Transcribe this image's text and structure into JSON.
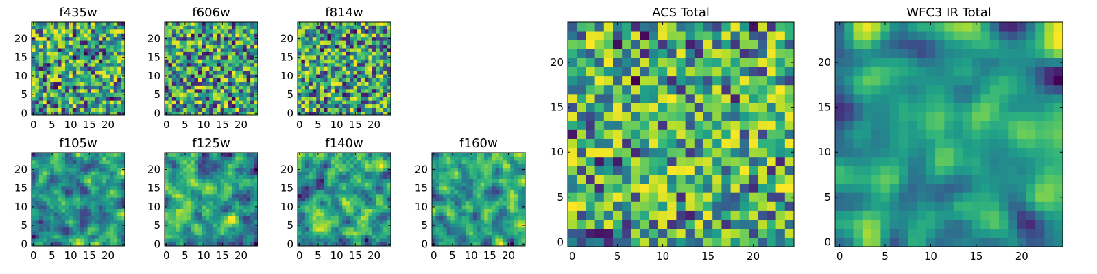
{
  "chart_data": [
    {
      "type": "heatmap",
      "title": "f435w",
      "grid_size": 25,
      "xlim": [
        0,
        24
      ],
      "ylim": [
        0,
        24
      ],
      "x_ticks": [
        0,
        5,
        10,
        15,
        20
      ],
      "y_ticks": [
        0,
        5,
        10,
        15,
        20
      ],
      "colormap": "viridis",
      "texture": "noise",
      "seed": 11
    },
    {
      "type": "heatmap",
      "title": "f606w",
      "grid_size": 25,
      "xlim": [
        0,
        24
      ],
      "ylim": [
        0,
        24
      ],
      "x_ticks": [
        0,
        5,
        10,
        15,
        20
      ],
      "y_ticks": [
        0,
        5,
        10,
        15,
        20
      ],
      "colormap": "viridis",
      "texture": "noise",
      "seed": 23
    },
    {
      "type": "heatmap",
      "title": "f814w",
      "grid_size": 25,
      "xlim": [
        0,
        24
      ],
      "ylim": [
        0,
        24
      ],
      "x_ticks": [
        0,
        5,
        10,
        15,
        20
      ],
      "y_ticks": [
        0,
        5,
        10,
        15,
        20
      ],
      "colormap": "viridis",
      "texture": "noise",
      "seed": 37
    },
    {
      "type": "heatmap",
      "title": "f105w",
      "grid_size": 25,
      "xlim": [
        0,
        24
      ],
      "ylim": [
        0,
        24
      ],
      "x_ticks": [
        0,
        5,
        10,
        15,
        20
      ],
      "y_ticks": [
        0,
        5,
        10,
        15,
        20
      ],
      "colormap": "viridis",
      "texture": "smooth",
      "seed": 41
    },
    {
      "type": "heatmap",
      "title": "f125w",
      "grid_size": 25,
      "xlim": [
        0,
        24
      ],
      "ylim": [
        0,
        24
      ],
      "x_ticks": [
        0,
        5,
        10,
        15,
        20
      ],
      "y_ticks": [
        0,
        5,
        10,
        15,
        20
      ],
      "colormap": "viridis",
      "texture": "smooth",
      "seed": 53
    },
    {
      "type": "heatmap",
      "title": "f140w",
      "grid_size": 25,
      "xlim": [
        0,
        24
      ],
      "ylim": [
        0,
        24
      ],
      "x_ticks": [
        0,
        5,
        10,
        15,
        20
      ],
      "y_ticks": [
        0,
        5,
        10,
        15,
        20
      ],
      "colormap": "viridis",
      "texture": "smooth",
      "seed": 67
    },
    {
      "type": "heatmap",
      "title": "f160w",
      "grid_size": 25,
      "xlim": [
        0,
        24
      ],
      "ylim": [
        0,
        24
      ],
      "x_ticks": [
        0,
        5,
        10,
        15,
        20
      ],
      "y_ticks": [
        0,
        5,
        10,
        15,
        20
      ],
      "colormap": "viridis",
      "texture": "smooth",
      "seed": 79
    },
    {
      "type": "heatmap",
      "title": "ACS Total",
      "grid_size": 25,
      "xlim": [
        0,
        24
      ],
      "ylim": [
        0,
        24
      ],
      "x_ticks": [
        0,
        5,
        10,
        15,
        20
      ],
      "y_ticks": [
        0,
        5,
        10,
        15,
        20
      ],
      "colormap": "viridis",
      "texture": "noise-bright",
      "seed": 97
    },
    {
      "type": "heatmap",
      "title": "WFC3 IR Total",
      "grid_size": 25,
      "xlim": [
        0,
        24
      ],
      "ylim": [
        0,
        24
      ],
      "x_ticks": [
        0,
        5,
        10,
        15,
        20
      ],
      "y_ticks": [
        0,
        5,
        10,
        15,
        20
      ],
      "colormap": "viridis",
      "texture": "very-smooth",
      "seed": 113
    }
  ]
}
